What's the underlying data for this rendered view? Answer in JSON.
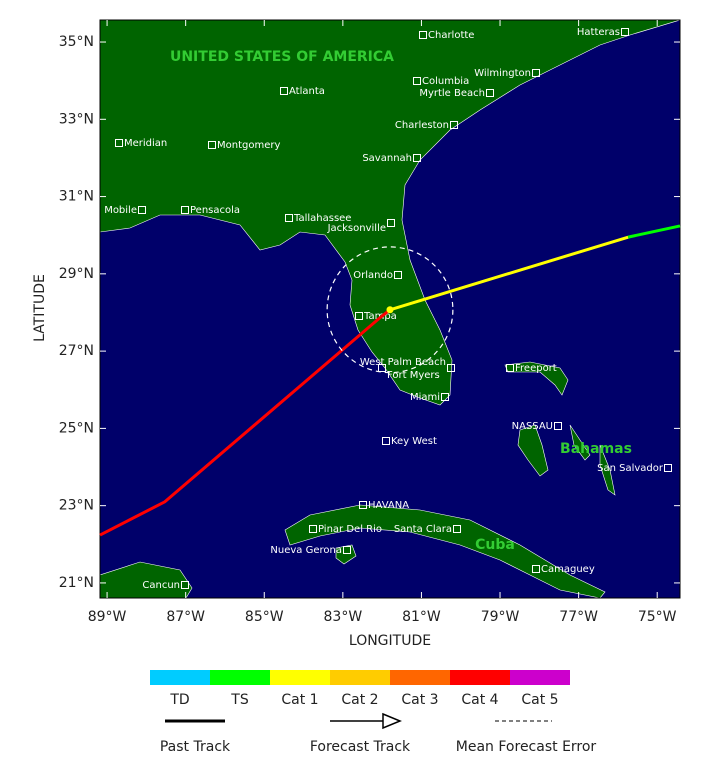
{
  "map": {
    "xlabel": "LONGITUDE",
    "ylabel": "LATITUDE",
    "xlim": [
      -89.18,
      -74.42
    ],
    "ylim": [
      20.61,
      35.57
    ],
    "xticks": [
      {
        "value": -89,
        "label": "89°W"
      },
      {
        "value": -87,
        "label": "87°W"
      },
      {
        "value": -85,
        "label": "85°W"
      },
      {
        "value": -83,
        "label": "83°W"
      },
      {
        "value": -81,
        "label": "81°W"
      },
      {
        "value": -79,
        "label": "79°W"
      },
      {
        "value": -77,
        "label": "77°W"
      },
      {
        "value": -75,
        "label": "75°W"
      }
    ],
    "yticks": [
      {
        "value": 21,
        "label": "21°N"
      },
      {
        "value": 23,
        "label": "23°N"
      },
      {
        "value": 25,
        "label": "25°N"
      },
      {
        "value": 27,
        "label": "27°N"
      },
      {
        "value": 29,
        "label": "29°N"
      },
      {
        "value": 31,
        "label": "31°N"
      },
      {
        "value": 33,
        "label": "33°N"
      },
      {
        "value": 35,
        "label": "35°N"
      }
    ],
    "countries": [
      "UNITED STATES OF AMERICA",
      "Bahamas",
      "Cuba"
    ],
    "cities": [
      "Charlotte",
      "Hatteras",
      "Columbia",
      "Wilmington",
      "Myrtle Beach",
      "Atlanta",
      "Charleston",
      "Meridian",
      "Montgomery",
      "Savannah",
      "Mobile",
      "Pensacola",
      "Tallahassee",
      "Jacksonville",
      "Orlando",
      "Tampa",
      "West Palm Beach",
      "Fort Myers",
      "Miami",
      "Freeport",
      "NASSAU",
      "Key West",
      "San Salvador",
      "HAVANA",
      "Pinar Del Rio",
      "Santa Clara",
      "Nueva Gerona",
      "Camaguey",
      "Cancun"
    ],
    "track": {
      "past": {
        "color": "#ff0000",
        "lon": [
          -89.18,
          -87.53,
          -82.06,
          -81.8
        ],
        "lat": [
          22.24,
          23.1,
          27.86,
          28.07
        ]
      },
      "forecast": [
        {
          "color": "#ffff00",
          "lon": [
            -81.8,
            -75.74
          ],
          "lat": [
            28.07,
            29.95
          ]
        },
        {
          "color": "#00ff00",
          "lon": [
            -75.74,
            -74.42
          ],
          "lat": [
            29.95,
            30.24
          ]
        }
      ],
      "error_radius_deg": 1.6
    }
  },
  "legend": {
    "categories": [
      {
        "label": "TD",
        "color": "#00ccff"
      },
      {
        "label": "TS",
        "color": "#00ff00"
      },
      {
        "label": "Cat 1",
        "color": "#ffff00"
      },
      {
        "label": "Cat 2",
        "color": "#ffcc00"
      },
      {
        "label": "Cat 3",
        "color": "#ff6600"
      },
      {
        "label": "Cat 4",
        "color": "#ff0000"
      },
      {
        "label": "Cat 5",
        "color": "#cc00cc"
      }
    ],
    "lines": [
      "Past Track",
      "Forecast Track",
      "Mean Forecast Error"
    ]
  }
}
